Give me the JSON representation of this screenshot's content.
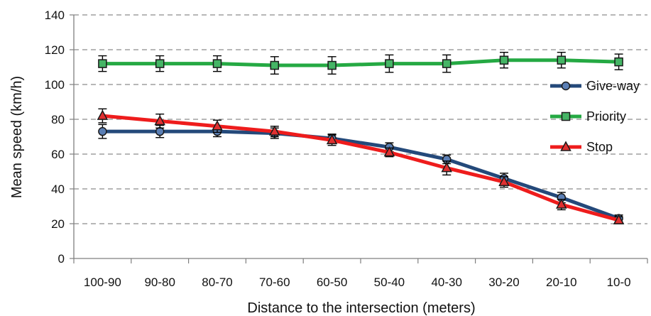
{
  "chart_data": {
    "type": "line",
    "xlabel": "Distance to the intersection (meters)",
    "ylabel": "Mean speed (km/h)",
    "ylim": [
      0,
      140
    ],
    "yticks": [
      0,
      20,
      40,
      60,
      80,
      100,
      120,
      140
    ],
    "categories": [
      "100-90",
      "90-80",
      "80-70",
      "70-60",
      "60-50",
      "50-40",
      "40-30",
      "30-20",
      "20-10",
      "10-0"
    ],
    "grid": "horizontal dashed",
    "legend_position": "right",
    "series": [
      {
        "name": "Give-way",
        "color": "#24497a",
        "marker": "circle",
        "marker_fill": "#5b7fb5",
        "values": [
          73,
          73,
          73,
          72,
          69,
          64,
          57,
          46,
          35,
          23
        ],
        "errors": [
          4,
          3.5,
          3,
          3,
          2.5,
          2.5,
          2.5,
          3,
          3,
          2
        ]
      },
      {
        "name": "Priority",
        "color": "#25a943",
        "marker": "square",
        "marker_fill": "#45b565",
        "values": [
          112,
          112,
          112,
          111,
          111,
          112,
          112,
          114,
          114,
          113
        ],
        "errors": [
          4.5,
          4.5,
          4.5,
          5,
          5,
          5,
          5,
          4.5,
          4.5,
          4.5
        ]
      },
      {
        "name": "Stop",
        "color": "#ee1c1c",
        "marker": "triangle",
        "marker_fill": "#e03030",
        "values": [
          82,
          79,
          76,
          73,
          68,
          61,
          52,
          44,
          31,
          22
        ],
        "errors": [
          4,
          4,
          3.5,
          3,
          3,
          2.5,
          4,
          3,
          3,
          2
        ]
      }
    ]
  }
}
